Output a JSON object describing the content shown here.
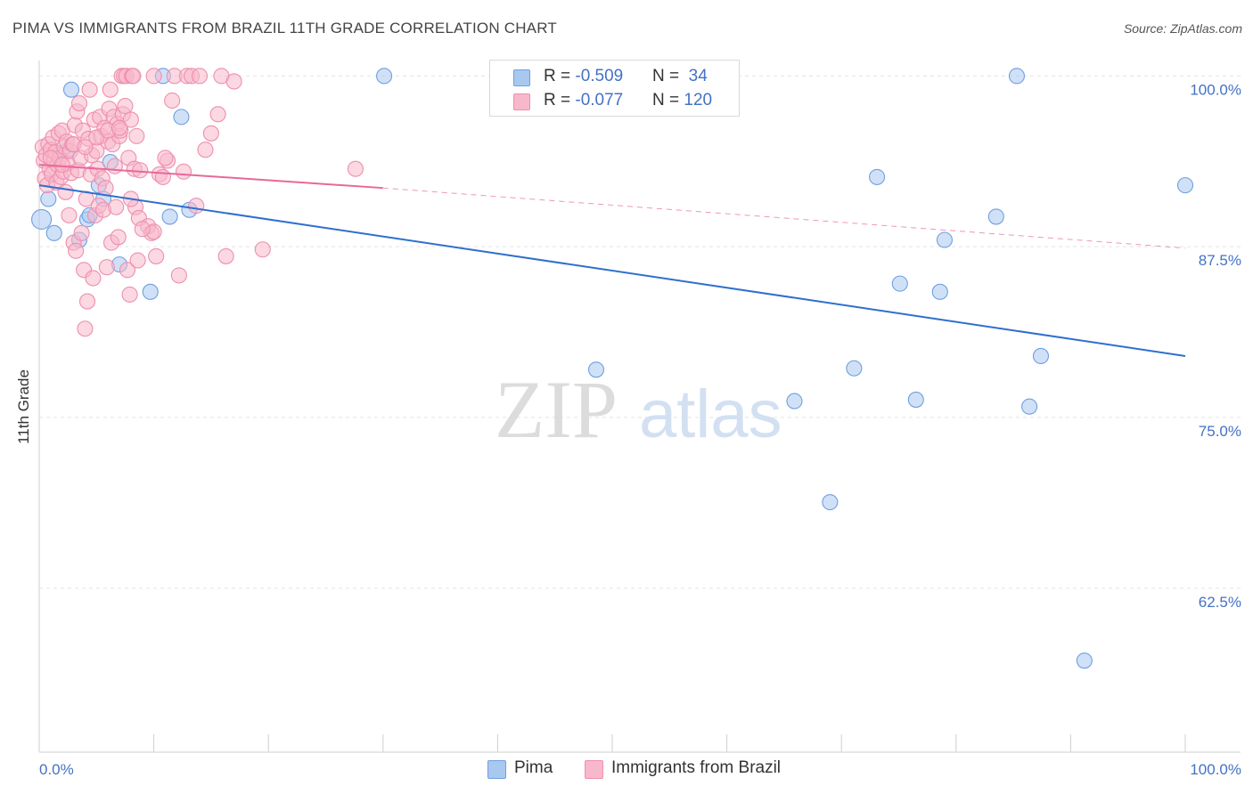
{
  "title": "PIMA VS IMMIGRANTS FROM BRAZIL 11TH GRADE CORRELATION CHART",
  "source": "Source: ZipAtlas.com",
  "watermark": {
    "zip": "ZIP",
    "atlas": "atlas"
  },
  "colors": {
    "pima_fill": "#a9c8f0",
    "pima_stroke": "#6e9fe0",
    "pima_line": "#2e6fce",
    "brazil_fill": "#f7b8cb",
    "brazil_stroke": "#ee8fae",
    "brazil_line": "#e8689a",
    "tick_text": "#4472c4",
    "grid": "#e3e3e3"
  },
  "legend": {
    "rows": [
      {
        "series": "pima",
        "r_label": "R = ",
        "r_value": "-0.509",
        "n_label": "N = ",
        "n_value": "34"
      },
      {
        "series": "brazil",
        "r_label": "R = ",
        "r_value": "-0.077",
        "n_label": "N = ",
        "n_value": "120"
      }
    ]
  },
  "bottom_legend": [
    {
      "series": "pima",
      "label": "Pima"
    },
    {
      "series": "brazil",
      "label": "Immigrants from Brazil"
    }
  ],
  "chart_data": {
    "type": "scatter",
    "title": "PIMA VS IMMIGRANTS FROM BRAZIL 11TH GRADE CORRELATION CHART",
    "xlabel": "",
    "ylabel": "11th Grade",
    "xlim": [
      0,
      100
    ],
    "ylim": [
      50.5,
      101
    ],
    "x_tick_labels": [
      "0.0%",
      "100.0%"
    ],
    "y_ticks": [
      {
        "value": 100,
        "label": "100.0%"
      },
      {
        "value": 87.5,
        "label": "87.5%"
      },
      {
        "value": 75,
        "label": "75.0%"
      },
      {
        "value": 62.5,
        "label": "62.5%"
      }
    ],
    "series": [
      {
        "name": "Pima",
        "key": "pima",
        "r": -0.509,
        "n": 34,
        "trend": {
          "x": [
            0,
            100
          ],
          "y": [
            92.0,
            79.5
          ]
        },
        "points": [
          {
            "x": 0.2,
            "y": 89.5
          },
          {
            "x": 0.8,
            "y": 91.0
          },
          {
            "x": 1.3,
            "y": 88.5
          },
          {
            "x": 2.4,
            "y": 94.5
          },
          {
            "x": 2.8,
            "y": 99.0
          },
          {
            "x": 3.5,
            "y": 88.0
          },
          {
            "x": 4.2,
            "y": 89.5
          },
          {
            "x": 4.4,
            "y": 89.8
          },
          {
            "x": 5.2,
            "y": 92.0
          },
          {
            "x": 5.6,
            "y": 91.0
          },
          {
            "x": 6.2,
            "y": 93.7
          },
          {
            "x": 7.0,
            "y": 86.2
          },
          {
            "x": 9.7,
            "y": 84.2
          },
          {
            "x": 10.8,
            "y": 100.0
          },
          {
            "x": 11.4,
            "y": 89.7
          },
          {
            "x": 12.4,
            "y": 97.0
          },
          {
            "x": 13.1,
            "y": 90.2
          },
          {
            "x": 30.1,
            "y": 100.0
          },
          {
            "x": 48.6,
            "y": 78.5
          },
          {
            "x": 65.9,
            "y": 76.2
          },
          {
            "x": 69.0,
            "y": 68.8
          },
          {
            "x": 71.1,
            "y": 78.6
          },
          {
            "x": 73.1,
            "y": 92.6
          },
          {
            "x": 75.1,
            "y": 84.8
          },
          {
            "x": 76.5,
            "y": 76.3
          },
          {
            "x": 78.6,
            "y": 84.2
          },
          {
            "x": 79.0,
            "y": 88.0
          },
          {
            "x": 83.5,
            "y": 89.7
          },
          {
            "x": 85.3,
            "y": 100.0
          },
          {
            "x": 86.4,
            "y": 75.8
          },
          {
            "x": 87.4,
            "y": 79.5
          },
          {
            "x": 91.2,
            "y": 57.2
          },
          {
            "x": 100.0,
            "y": 92.0
          },
          {
            "x": 1.6,
            "y": 94.2
          }
        ]
      },
      {
        "name": "Immigrants from Brazil",
        "key": "brazil",
        "r": -0.077,
        "n": 120,
        "trend": {
          "x": [
            0,
            30
          ],
          "y": [
            93.5,
            91.8
          ]
        },
        "trend_dashed": {
          "x": [
            30,
            100
          ],
          "y": [
            91.8,
            87.4
          ]
        },
        "points": [
          {
            "x": 0.3,
            "y": 94.8
          },
          {
            "x": 0.4,
            "y": 93.8
          },
          {
            "x": 0.5,
            "y": 92.5
          },
          {
            "x": 0.6,
            "y": 94.2
          },
          {
            "x": 0.7,
            "y": 92.0
          },
          {
            "x": 0.8,
            "y": 95.0
          },
          {
            "x": 0.9,
            "y": 93.2
          },
          {
            "x": 1.0,
            "y": 94.6
          },
          {
            "x": 1.1,
            "y": 92.8
          },
          {
            "x": 1.2,
            "y": 95.5
          },
          {
            "x": 1.3,
            "y": 93.9
          },
          {
            "x": 1.4,
            "y": 94.4
          },
          {
            "x": 1.5,
            "y": 92.2
          },
          {
            "x": 1.6,
            "y": 93.5
          },
          {
            "x": 1.7,
            "y": 95.8
          },
          {
            "x": 1.8,
            "y": 94.0
          },
          {
            "x": 1.9,
            "y": 92.6
          },
          {
            "x": 2.0,
            "y": 96.0
          },
          {
            "x": 2.1,
            "y": 93.0
          },
          {
            "x": 2.2,
            "y": 94.8
          },
          {
            "x": 2.3,
            "y": 91.5
          },
          {
            "x": 2.4,
            "y": 95.2
          },
          {
            "x": 2.5,
            "y": 93.6
          },
          {
            "x": 2.6,
            "y": 89.8
          },
          {
            "x": 2.7,
            "y": 94.5
          },
          {
            "x": 2.8,
            "y": 92.9
          },
          {
            "x": 2.9,
            "y": 95.0
          },
          {
            "x": 3.0,
            "y": 87.8
          },
          {
            "x": 3.1,
            "y": 96.4
          },
          {
            "x": 3.2,
            "y": 87.2
          },
          {
            "x": 3.3,
            "y": 97.4
          },
          {
            "x": 3.4,
            "y": 93.1
          },
          {
            "x": 3.5,
            "y": 98.0
          },
          {
            "x": 3.6,
            "y": 94.0
          },
          {
            "x": 3.7,
            "y": 88.5
          },
          {
            "x": 3.8,
            "y": 96.0
          },
          {
            "x": 3.9,
            "y": 85.8
          },
          {
            "x": 4.0,
            "y": 81.5
          },
          {
            "x": 4.1,
            "y": 91.0
          },
          {
            "x": 4.2,
            "y": 83.5
          },
          {
            "x": 4.3,
            "y": 95.4
          },
          {
            "x": 4.4,
            "y": 99.0
          },
          {
            "x": 4.5,
            "y": 92.8
          },
          {
            "x": 4.6,
            "y": 94.2
          },
          {
            "x": 4.7,
            "y": 85.2
          },
          {
            "x": 4.8,
            "y": 96.8
          },
          {
            "x": 4.9,
            "y": 89.8
          },
          {
            "x": 5.0,
            "y": 94.5
          },
          {
            "x": 5.1,
            "y": 93.2
          },
          {
            "x": 5.2,
            "y": 90.5
          },
          {
            "x": 5.3,
            "y": 97.0
          },
          {
            "x": 5.4,
            "y": 95.6
          },
          {
            "x": 5.5,
            "y": 92.5
          },
          {
            "x": 5.6,
            "y": 90.2
          },
          {
            "x": 5.7,
            "y": 96.2
          },
          {
            "x": 5.8,
            "y": 91.8
          },
          {
            "x": 5.9,
            "y": 86.0
          },
          {
            "x": 6.0,
            "y": 95.2
          },
          {
            "x": 6.1,
            "y": 97.6
          },
          {
            "x": 6.2,
            "y": 99.0
          },
          {
            "x": 6.3,
            "y": 87.8
          },
          {
            "x": 6.4,
            "y": 95.0
          },
          {
            "x": 6.5,
            "y": 97.0
          },
          {
            "x": 6.6,
            "y": 93.4
          },
          {
            "x": 6.7,
            "y": 90.4
          },
          {
            "x": 6.8,
            "y": 96.5
          },
          {
            "x": 6.9,
            "y": 88.2
          },
          {
            "x": 7.0,
            "y": 95.6
          },
          {
            "x": 7.1,
            "y": 96.0
          },
          {
            "x": 7.2,
            "y": 100.0
          },
          {
            "x": 7.3,
            "y": 97.2
          },
          {
            "x": 7.4,
            "y": 100.0
          },
          {
            "x": 7.5,
            "y": 97.8
          },
          {
            "x": 7.6,
            "y": 100.0
          },
          {
            "x": 7.7,
            "y": 85.8
          },
          {
            "x": 7.8,
            "y": 94.0
          },
          {
            "x": 7.9,
            "y": 84.0
          },
          {
            "x": 8.0,
            "y": 96.8
          },
          {
            "x": 8.1,
            "y": 100.0
          },
          {
            "x": 8.2,
            "y": 100.0
          },
          {
            "x": 8.3,
            "y": 93.2
          },
          {
            "x": 8.4,
            "y": 90.4
          },
          {
            "x": 8.5,
            "y": 95.6
          },
          {
            "x": 8.6,
            "y": 86.5
          },
          {
            "x": 8.7,
            "y": 89.6
          },
          {
            "x": 8.8,
            "y": 93.1
          },
          {
            "x": 9.5,
            "y": 89.0
          },
          {
            "x": 9.8,
            "y": 88.5
          },
          {
            "x": 10.0,
            "y": 88.6
          },
          {
            "x": 10.2,
            "y": 86.8
          },
          {
            "x": 10.5,
            "y": 92.8
          },
          {
            "x": 10.8,
            "y": 92.6
          },
          {
            "x": 11.2,
            "y": 93.8
          },
          {
            "x": 11.6,
            "y": 98.2
          },
          {
            "x": 11.8,
            "y": 100.0
          },
          {
            "x": 12.2,
            "y": 85.4
          },
          {
            "x": 12.6,
            "y": 93.0
          },
          {
            "x": 12.9,
            "y": 100.0
          },
          {
            "x": 13.3,
            "y": 100.0
          },
          {
            "x": 13.7,
            "y": 90.5
          },
          {
            "x": 14.0,
            "y": 100.0
          },
          {
            "x": 14.5,
            "y": 94.6
          },
          {
            "x": 15.0,
            "y": 95.8
          },
          {
            "x": 15.6,
            "y": 97.2
          },
          {
            "x": 15.9,
            "y": 100.0
          },
          {
            "x": 16.3,
            "y": 86.8
          },
          {
            "x": 17.0,
            "y": 99.6
          },
          {
            "x": 19.5,
            "y": 87.3
          },
          {
            "x": 27.6,
            "y": 93.2
          },
          {
            "x": 1.0,
            "y": 94.0
          },
          {
            "x": 2.0,
            "y": 93.5
          },
          {
            "x": 3.0,
            "y": 95.0
          },
          {
            "x": 4.0,
            "y": 94.8
          },
          {
            "x": 5.0,
            "y": 95.5
          },
          {
            "x": 6.0,
            "y": 96.0
          },
          {
            "x": 7.0,
            "y": 96.2
          },
          {
            "x": 8.0,
            "y": 91.0
          },
          {
            "x": 9.0,
            "y": 88.8
          },
          {
            "x": 10.0,
            "y": 100.0
          },
          {
            "x": 11.0,
            "y": 94.0
          }
        ]
      }
    ]
  }
}
